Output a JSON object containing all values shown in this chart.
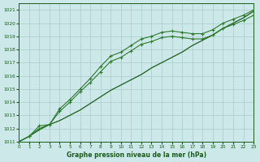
{
  "title": "Graphe pression niveau de la mer (hPa)",
  "background_color": "#cce8e8",
  "grid_color": "#aacccc",
  "line_color_dark": "#1a5c1a",
  "line_color_light": "#2d7a2d",
  "xlim": [
    0,
    23
  ],
  "ylim": [
    1011,
    1021.5
  ],
  "xticks": [
    0,
    1,
    2,
    3,
    4,
    5,
    6,
    7,
    8,
    9,
    10,
    11,
    12,
    13,
    14,
    15,
    16,
    17,
    18,
    19,
    20,
    21,
    22,
    23
  ],
  "yticks": [
    1011,
    1012,
    1013,
    1014,
    1015,
    1016,
    1017,
    1018,
    1019,
    1020,
    1021
  ],
  "series1_x": [
    0,
    1,
    2,
    3,
    4,
    5,
    6,
    7,
    8,
    9,
    10,
    11,
    12,
    13,
    14,
    15,
    16,
    17,
    18,
    19,
    20,
    21,
    22,
    23
  ],
  "series1_y": [
    1011.0,
    1011.4,
    1011.9,
    1012.3,
    1012.6,
    1013.0,
    1013.4,
    1013.9,
    1014.4,
    1014.9,
    1015.3,
    1015.7,
    1016.1,
    1016.6,
    1017.0,
    1017.4,
    1017.8,
    1018.3,
    1018.7,
    1019.1,
    1019.6,
    1020.0,
    1020.4,
    1020.9
  ],
  "series2_x": [
    0,
    1,
    2,
    3,
    4,
    5,
    6,
    7,
    8,
    9,
    10,
    11,
    12,
    13,
    14,
    15,
    16,
    17,
    18,
    19,
    20,
    21,
    22,
    23
  ],
  "series2_y": [
    1011.0,
    1011.4,
    1012.2,
    1012.3,
    1013.5,
    1014.2,
    1015.0,
    1015.8,
    1016.7,
    1017.5,
    1017.8,
    1018.3,
    1018.8,
    1019.0,
    1019.3,
    1019.4,
    1019.3,
    1019.2,
    1019.2,
    1019.5,
    1020.0,
    1020.3,
    1020.6,
    1021.0
  ],
  "series3_x": [
    0,
    1,
    2,
    3,
    4,
    5,
    6,
    7,
    8,
    9,
    10,
    11,
    12,
    13,
    14,
    15,
    16,
    17,
    18,
    19,
    20,
    21,
    22,
    23
  ],
  "series3_y": [
    1011.0,
    1011.4,
    1012.0,
    1012.3,
    1013.3,
    1014.0,
    1014.8,
    1015.5,
    1016.3,
    1017.1,
    1017.4,
    1017.9,
    1018.4,
    1018.6,
    1018.9,
    1019.0,
    1018.9,
    1018.8,
    1018.8,
    1019.1,
    1019.6,
    1019.9,
    1020.2,
    1020.6
  ]
}
